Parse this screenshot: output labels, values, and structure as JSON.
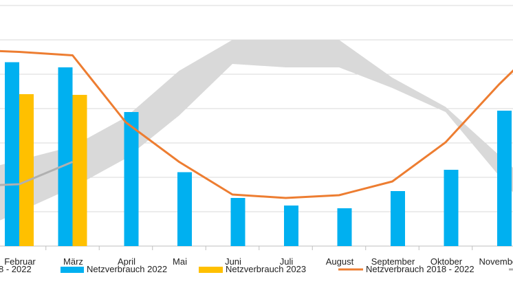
{
  "chart_data": {
    "type": "bar",
    "title": "",
    "xlabel": "",
    "ylabel": "",
    "categories": [
      "Februar",
      "März",
      "April",
      "Mai",
      "Juni",
      "Juli",
      "August",
      "September",
      "Oktober",
      "November"
    ],
    "ylim": [
      0,
      7
    ],
    "grid": true,
    "series": [
      {
        "name": "Netzverbrauch 2022",
        "type": "bar",
        "color": "#00b0f0",
        "values": [
          5.35,
          5.2,
          3.9,
          2.15,
          1.4,
          1.18,
          1.1,
          1.6,
          2.22,
          3.94
        ]
      },
      {
        "name": "Netzverbrauch 2023",
        "type": "bar",
        "color": "#ffc000",
        "values": [
          4.42,
          4.4,
          null,
          null,
          null,
          null,
          null,
          null,
          null,
          null
        ]
      },
      {
        "name": "Netzverbrauch 2018 - 2022",
        "type": "line",
        "color": "#ed7d31",
        "values": [
          5.65,
          5.55,
          3.6,
          2.45,
          1.5,
          1.4,
          1.48,
          1.88,
          3.02,
          4.7
        ]
      },
      {
        "name": "",
        "type": "line",
        "color": "#b0b0b0",
        "values": [
          1.8,
          2.45,
          null,
          null,
          null,
          null,
          null,
          null,
          null,
          null
        ]
      },
      {
        "name": "",
        "type": "band",
        "color": "#d9d9d9",
        "upper": [
          2.5,
          2.9,
          3.75,
          5.1,
          6.0,
          6.0,
          6.0,
          4.9,
          4.05,
          2.65
        ],
        "lower": [
          1.0,
          1.7,
          2.55,
          3.8,
          5.3,
          5.2,
          5.2,
          4.6,
          3.9,
          2.05
        ]
      }
    ],
    "legend": {
      "position": "bottom",
      "clipped_left_label": "8 - 2022",
      "entries": [
        {
          "label": "Netzverbrauch 2022",
          "color": "#00b0f0",
          "marker": "bar"
        },
        {
          "label": "Netzverbrauch 2023",
          "color": "#ffc000",
          "marker": "bar"
        },
        {
          "label": "Netzverbrauch 2018 - 2022",
          "color": "#ed7d31",
          "marker": "line"
        }
      ]
    }
  }
}
